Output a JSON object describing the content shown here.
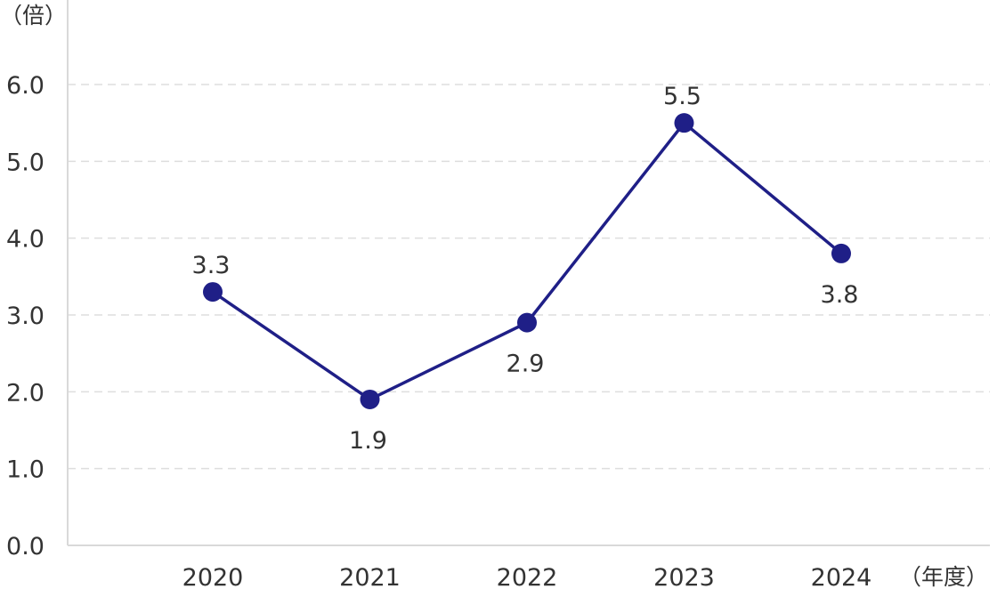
{
  "chart_data": {
    "type": "line",
    "title": "",
    "ylabel": "（倍）",
    "xlabel": "（年度）",
    "ylim": [
      0,
      6
    ],
    "yticks": [
      "0.0",
      "1.0",
      "2.0",
      "3.0",
      "4.0",
      "5.0",
      "6.0"
    ],
    "grid": true,
    "legend": "none",
    "categories": [
      "2020",
      "2021",
      "2022",
      "2023",
      "2024"
    ],
    "series": [
      {
        "color": "#1f1f87",
        "values": [
          3.3,
          1.9,
          2.9,
          5.5,
          3.8
        ],
        "labels": [
          "3.3",
          "1.9",
          "2.9",
          "5.5",
          "3.8"
        ],
        "label_positions": [
          "above",
          "below",
          "below",
          "above",
          "below"
        ]
      }
    ]
  }
}
